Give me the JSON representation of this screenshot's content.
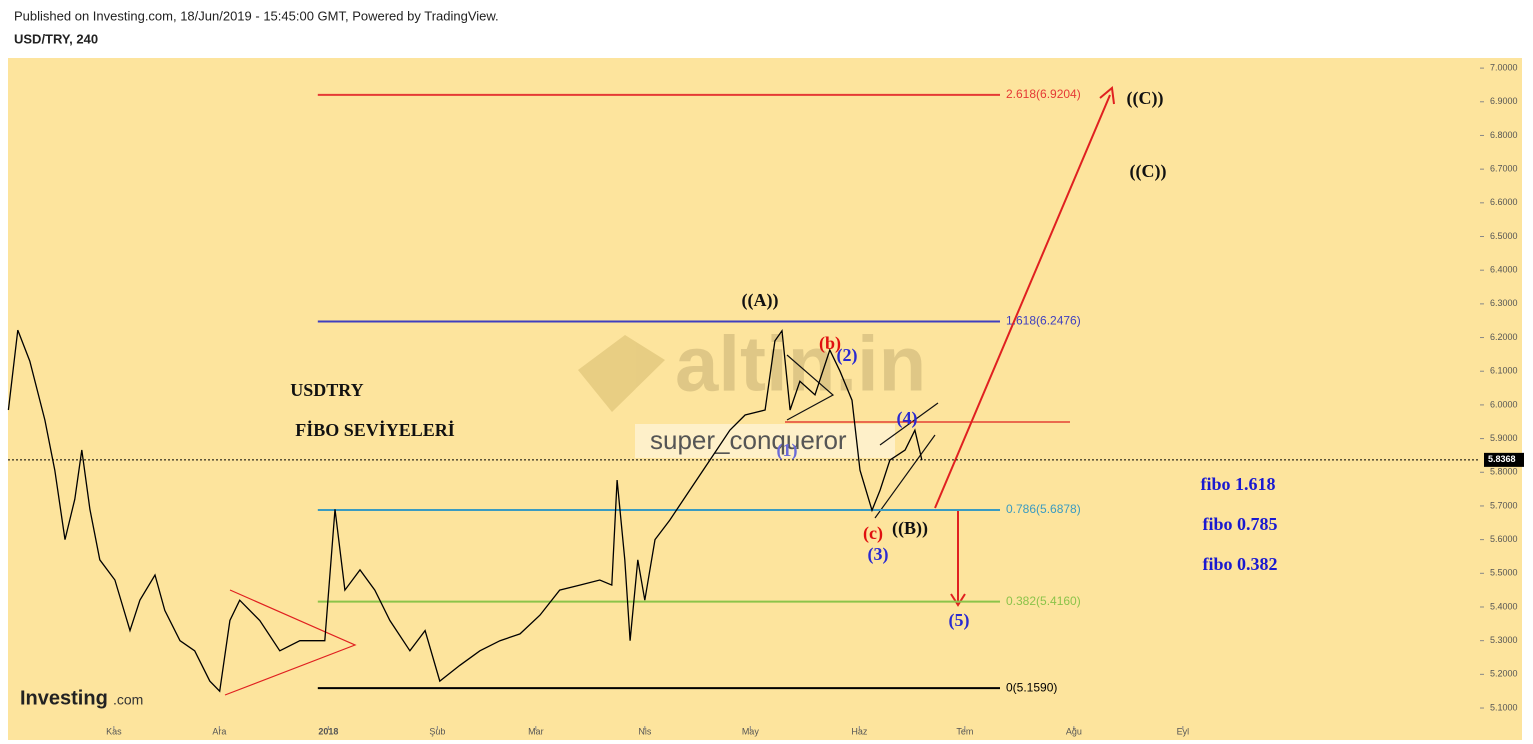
{
  "header": {
    "published": "Published on Investing.com, 18/Jun/2019 - 15:45:00 GMT, Powered by TradingView.",
    "symbol": "USD/TRY, 240"
  },
  "watermark": "altin.in",
  "author": "super_conqueror",
  "logo": {
    "main": "Investing",
    "suffix": ".com"
  },
  "chart_data": {
    "type": "line",
    "xlim": [
      -30.1,
      388.5
    ],
    "ylim": [
      5.011,
      7.03
    ],
    "xticks": [
      {
        "value": 0,
        "label": "Kas"
      },
      {
        "value": 30,
        "label": "Ara"
      },
      {
        "value": 61,
        "label": "2018"
      },
      {
        "value": 92,
        "label": "Şub"
      },
      {
        "value": 120,
        "label": "Mar"
      },
      {
        "value": 151,
        "label": "Nis"
      },
      {
        "value": 181,
        "label": "May"
      },
      {
        "value": 212,
        "label": "Haz"
      },
      {
        "value": 242,
        "label": "Tem"
      },
      {
        "value": 273,
        "label": "Ağu"
      },
      {
        "value": 304,
        "label": "Eyl"
      }
    ],
    "yticks": [
      {
        "value": 5.1,
        "label": "5.1000"
      },
      {
        "value": 5.2,
        "label": "5.2000"
      },
      {
        "value": 5.3,
        "label": "5.3000"
      },
      {
        "value": 5.4,
        "label": "5.4000"
      },
      {
        "value": 5.5,
        "label": "5.5000"
      },
      {
        "value": 5.6,
        "label": "5.6000"
      },
      {
        "value": 5.7,
        "label": "5.7000"
      },
      {
        "value": 5.8,
        "label": "5.8000"
      },
      {
        "value": 5.9,
        "label": "5.9000"
      },
      {
        "value": 6.0,
        "label": "6.0000"
      },
      {
        "value": 6.1,
        "label": "6.1000"
      },
      {
        "value": 6.2,
        "label": "6.2000"
      },
      {
        "value": 6.3,
        "label": "6.3000"
      },
      {
        "value": 6.4,
        "label": "6.4000"
      },
      {
        "value": 6.5,
        "label": "6.5000"
      },
      {
        "value": 6.6,
        "label": "6.6000"
      },
      {
        "value": 6.7,
        "label": "6.7000"
      },
      {
        "value": 6.8,
        "label": "6.8000"
      },
      {
        "value": 6.9,
        "label": "6.9000"
      },
      {
        "value": 7.0,
        "label": "7.0000"
      }
    ],
    "series": [
      {
        "color": "#000000",
        "x": [
          -30,
          -27.3,
          -23.9,
          -19.6,
          -16.8,
          -13.9,
          -11.1,
          -9.1,
          -6.8,
          -4.0,
          0.3,
          4.6,
          7.4,
          11.7,
          14.5,
          18.8,
          23.0,
          27.3,
          30.1,
          33.0,
          35.8,
          41.5,
          47.2,
          52.9,
          60.0,
          62.9,
          65.7,
          70.0,
          74.2,
          78.5,
          84.2,
          88.5,
          92.7,
          98.4,
          104.1,
          109.8,
          115.5,
          121.2,
          126.8,
          132.5,
          138.2,
          141.6,
          143.1,
          145.3,
          146.8,
          149.0,
          151.0,
          153.9,
          158.1,
          163.8,
          169.5,
          175.2,
          179.5,
          185.2,
          188.0,
          190.0,
          192.3,
          195.1,
          199.4,
          203.6,
          206.5,
          209.9,
          212.2,
          215.6,
          217.9,
          220.7,
          225.0,
          227.8,
          229.8
        ],
        "values": [
          5.985,
          6.222,
          6.13,
          5.955,
          5.806,
          5.6,
          5.72,
          5.866,
          5.69,
          5.54,
          5.48,
          5.33,
          5.42,
          5.495,
          5.39,
          5.3,
          5.27,
          5.18,
          5.15,
          5.36,
          5.42,
          5.36,
          5.27,
          5.3,
          5.3,
          5.69,
          5.45,
          5.51,
          5.45,
          5.36,
          5.27,
          5.33,
          5.18,
          5.227,
          5.27,
          5.3,
          5.32,
          5.376,
          5.45,
          5.465,
          5.48,
          5.465,
          5.777,
          5.54,
          5.3,
          5.54,
          5.42,
          5.6,
          5.658,
          5.747,
          5.836,
          5.925,
          5.97,
          5.985,
          6.19,
          6.22,
          5.985,
          6.07,
          6.03,
          6.163,
          6.1,
          6.014,
          5.806,
          5.687,
          5.747,
          5.836,
          5.866,
          5.925,
          5.836
        ]
      }
    ],
    "fib_range": [
      58,
      252
    ],
    "fib_levels": [
      {
        "label": "2.618(6.9204)",
        "value": 6.9204,
        "color": "#e53935"
      },
      {
        "label": "1.618(6.2476)",
        "value": 6.2476,
        "color": "#3f3fbf"
      },
      {
        "label": "0.786(5.6878)",
        "value": 5.6878,
        "color": "#3a9bc1"
      },
      {
        "label": "0.382(5.4160)",
        "value": 5.416,
        "color": "#8bc34a"
      },
      {
        "label": "0(5.1590)",
        "value": 5.159,
        "color": "#000000"
      }
    ],
    "last_price": 5.8368,
    "annotations": [
      {
        "text": "((A))",
        "color": "#111111"
      },
      {
        "text": "(b)",
        "color": "#e01010"
      },
      {
        "text": "(2)",
        "color": "#2a2ad0"
      },
      {
        "text": "(1)",
        "color": "#6a6ad8"
      },
      {
        "text": "(4)",
        "color": "#2a2ad0"
      },
      {
        "text": "(c)",
        "color": "#e01010"
      },
      {
        "text": "((B))",
        "color": "#111111"
      },
      {
        "text": "(3)",
        "color": "#2a2ad0"
      },
      {
        "text": "(5)",
        "color": "#2a2ad0"
      },
      {
        "text": "((C))",
        "color": "#111111"
      },
      {
        "text": "((C))",
        "color": "#111111"
      },
      {
        "text": "USDTRY",
        "color": "#111111"
      },
      {
        "text": "FİBO SEVİYELERİ",
        "color": "#111111"
      },
      {
        "text": "fibo 1.618",
        "color": "#1a1ad0"
      },
      {
        "text": "fibo  0.785",
        "color": "#1a1ad0"
      },
      {
        "text": "fibo  0.382",
        "color": "#1a1ad0"
      }
    ]
  }
}
